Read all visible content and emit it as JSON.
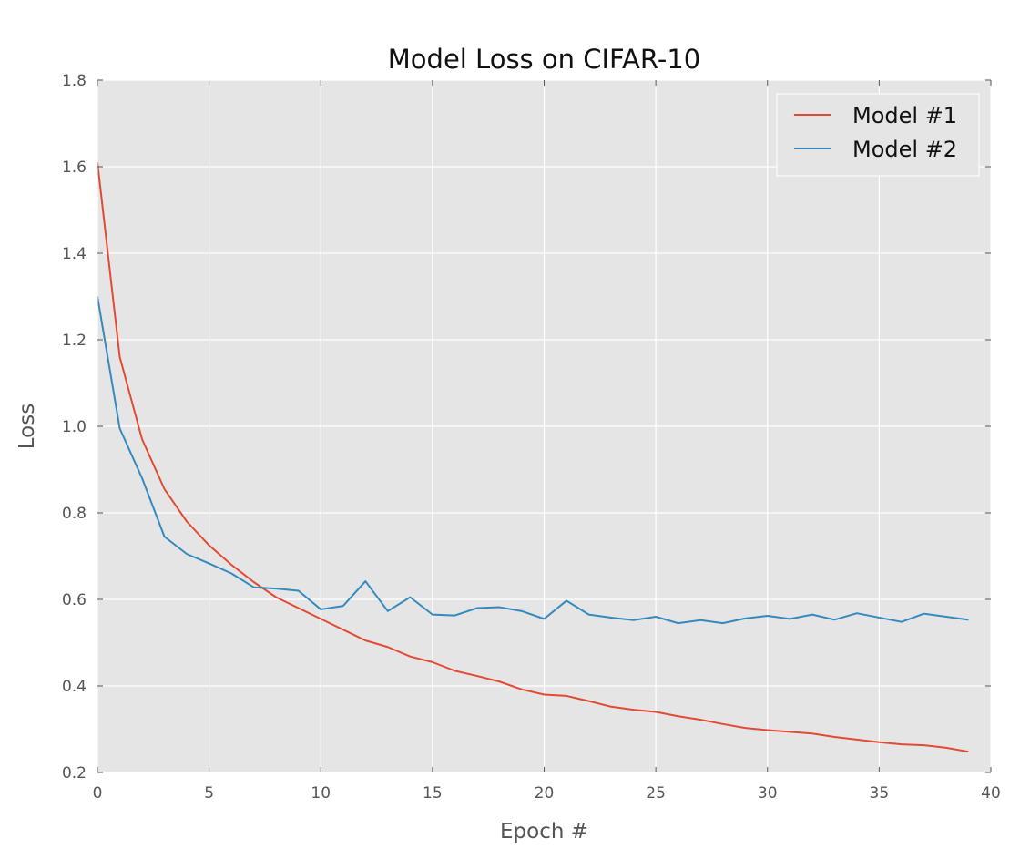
{
  "chart_data": {
    "type": "line",
    "title": "Model Loss on CIFAR-10",
    "xlabel": "Epoch #",
    "ylabel": "Loss",
    "xlim": [
      0,
      40
    ],
    "ylim": [
      0.2,
      1.8
    ],
    "xticks": [
      0,
      5,
      10,
      15,
      20,
      25,
      30,
      35,
      40
    ],
    "yticks": [
      0.2,
      0.4,
      0.6,
      0.8,
      1.0,
      1.2,
      1.4,
      1.6,
      1.8
    ],
    "xtick_labels": [
      "0",
      "5",
      "10",
      "15",
      "20",
      "25",
      "30",
      "35",
      "40"
    ],
    "ytick_labels": [
      "0.2",
      "0.4",
      "0.6",
      "0.8",
      "1.0",
      "1.2",
      "1.4",
      "1.6",
      "1.8"
    ],
    "grid": true,
    "legend_position": "top-right",
    "background_color": "#e5e5e5",
    "grid_color": "#ffffff",
    "x": [
      0,
      1,
      2,
      3,
      4,
      5,
      6,
      7,
      8,
      9,
      10,
      11,
      12,
      13,
      14,
      15,
      16,
      17,
      18,
      19,
      20,
      21,
      22,
      23,
      24,
      25,
      26,
      27,
      28,
      29,
      30,
      31,
      32,
      33,
      34,
      35,
      36,
      37,
      38,
      39
    ],
    "series": [
      {
        "name": "Model #1",
        "color": "#e24a33",
        "values": [
          1.61,
          1.16,
          0.97,
          0.855,
          0.78,
          0.725,
          0.68,
          0.64,
          0.605,
          0.58,
          0.555,
          0.53,
          0.505,
          0.49,
          0.468,
          0.455,
          0.435,
          0.423,
          0.41,
          0.392,
          0.38,
          0.377,
          0.365,
          0.352,
          0.345,
          0.34,
          0.33,
          0.322,
          0.312,
          0.303,
          0.298,
          0.294,
          0.29,
          0.282,
          0.276,
          0.27,
          0.265,
          0.263,
          0.257,
          0.248
        ]
      },
      {
        "name": "Model #2",
        "color": "#348abd",
        "values": [
          1.3,
          0.995,
          0.88,
          0.745,
          0.705,
          0.683,
          0.66,
          0.628,
          0.625,
          0.62,
          0.577,
          0.585,
          0.642,
          0.573,
          0.605,
          0.565,
          0.563,
          0.58,
          0.582,
          0.573,
          0.555,
          0.597,
          0.565,
          0.558,
          0.552,
          0.56,
          0.545,
          0.552,
          0.545,
          0.556,
          0.562,
          0.555,
          0.565,
          0.553,
          0.568,
          0.558,
          0.548,
          0.567,
          0.56,
          0.553
        ]
      }
    ]
  }
}
